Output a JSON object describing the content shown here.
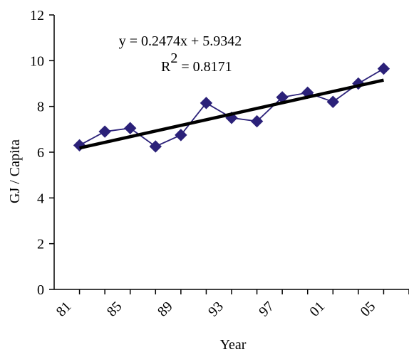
{
  "chart_data": {
    "type": "line",
    "xlabel": "Year",
    "ylabel": "GJ / Capita",
    "ylim": [
      0,
      12
    ],
    "y_ticks": [
      "0",
      "2",
      "4",
      "6",
      "8",
      "10",
      "12"
    ],
    "x_tick_labels": [
      "81",
      "85",
      "89",
      "93",
      "97",
      "01",
      "05"
    ],
    "x": [
      1,
      2,
      3,
      4,
      5,
      6,
      7,
      8,
      9,
      10,
      11,
      12,
      13
    ],
    "series": [
      {
        "values": [
          6.3,
          6.9,
          7.05,
          6.25,
          6.75,
          8.15,
          7.5,
          7.35,
          8.4,
          8.6,
          8.2,
          9.0,
          9.65
        ],
        "color": "#2b2179",
        "marker": "diamond"
      }
    ],
    "trendline": {
      "slope": 0.2474,
      "intercept": 5.9342,
      "color": "#000000"
    },
    "annotations": {
      "equation": "y = 0.2474x + 5.9342",
      "r2_prefix": "R",
      "r2_sup": "2",
      "r2_suffix": " = 0.8171"
    },
    "grid": false,
    "legend": "none"
  }
}
